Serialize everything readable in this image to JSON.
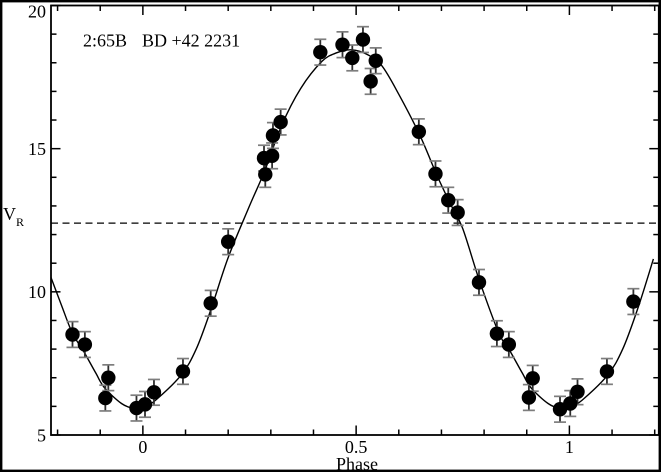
{
  "chart_data": {
    "type": "scatter",
    "title_parts": [
      "2:65B",
      "BD +42 2231"
    ],
    "xlabel": "Phase",
    "ylabel_main": "V",
    "ylabel_sub": "R",
    "xlim": [
      -0.2154,
      1.2096
    ],
    "ylim": [
      5,
      20
    ],
    "x_major_ticks": [
      0,
      0.5,
      1
    ],
    "x_major_tick_labels": [
      "0",
      "0.5",
      "1"
    ],
    "x_minor_step": 0.1,
    "y_major_ticks": [
      5,
      10,
      15,
      20
    ],
    "y_major_tick_labels": [
      "5",
      "10",
      "15",
      "20"
    ],
    "y_minor_step": 1,
    "grid": false,
    "legend": false,
    "mean_dashed_line_y": 12.4,
    "error_bar_half_height": 0.45,
    "points": [
      [
        -0.165,
        8.51
      ],
      [
        -0.136,
        8.16
      ],
      [
        -0.088,
        6.29
      ],
      [
        -0.081,
        7.0
      ],
      [
        -0.015,
        5.94
      ],
      [
        0.005,
        6.07
      ],
      [
        0.026,
        6.49
      ],
      [
        0.094,
        7.22
      ],
      [
        0.159,
        9.6
      ],
      [
        0.2,
        11.75
      ],
      [
        0.284,
        14.67
      ],
      [
        0.287,
        14.1
      ],
      [
        0.303,
        14.75
      ],
      [
        0.305,
        15.46
      ],
      [
        0.323,
        15.93
      ],
      [
        0.416,
        18.37
      ],
      [
        0.468,
        18.63
      ],
      [
        0.491,
        18.17
      ],
      [
        0.516,
        18.81
      ],
      [
        0.534,
        17.35
      ],
      [
        0.546,
        18.07
      ],
      [
        0.647,
        15.59
      ],
      [
        0.686,
        14.12
      ],
      [
        0.716,
        13.2
      ],
      [
        0.738,
        12.77
      ],
      [
        0.788,
        10.33
      ],
      [
        0.83,
        8.54
      ],
      [
        0.858,
        8.16
      ],
      [
        0.905,
        6.31
      ],
      [
        0.914,
        6.98
      ],
      [
        0.978,
        5.9
      ],
      [
        1.002,
        6.1
      ],
      [
        1.019,
        6.51
      ],
      [
        1.088,
        7.22
      ],
      [
        1.15,
        9.66
      ]
    ],
    "fit_curve": [
      [
        -0.2154,
        10.5
      ],
      [
        -0.19,
        9.5
      ],
      [
        -0.165,
        8.55
      ],
      [
        -0.14,
        7.95
      ],
      [
        -0.11,
        7.15
      ],
      [
        -0.09,
        6.65
      ],
      [
        -0.05,
        6.1
      ],
      [
        -0.02,
        5.92
      ],
      [
        0.0,
        5.96
      ],
      [
        0.03,
        6.22
      ],
      [
        0.09,
        7.1
      ],
      [
        0.125,
        8.0
      ],
      [
        0.16,
        9.4
      ],
      [
        0.2,
        11.2
      ],
      [
        0.25,
        13.0
      ],
      [
        0.285,
        14.2
      ],
      [
        0.325,
        15.8
      ],
      [
        0.37,
        17.1
      ],
      [
        0.42,
        18.05
      ],
      [
        0.455,
        18.35
      ],
      [
        0.49,
        18.45
      ],
      [
        0.525,
        18.3
      ],
      [
        0.56,
        17.9
      ],
      [
        0.6,
        16.9
      ],
      [
        0.65,
        15.45
      ],
      [
        0.69,
        14.05
      ],
      [
        0.72,
        13.1
      ],
      [
        0.75,
        12.2
      ],
      [
        0.79,
        10.35
      ],
      [
        0.835,
        8.55
      ],
      [
        0.86,
        7.95
      ],
      [
        0.89,
        7.15
      ],
      [
        0.91,
        6.65
      ],
      [
        0.95,
        6.1
      ],
      [
        0.98,
        5.92
      ],
      [
        1.0,
        5.96
      ],
      [
        1.03,
        6.22
      ],
      [
        1.09,
        7.1
      ],
      [
        1.125,
        8.0
      ],
      [
        1.16,
        9.4
      ],
      [
        1.197,
        11.15
      ]
    ]
  },
  "colors": {
    "ink": "#000000",
    "background": "#ffffff",
    "errorbar_line": "#2e2e2e",
    "errorbar_cap": "#7d7d7d"
  }
}
